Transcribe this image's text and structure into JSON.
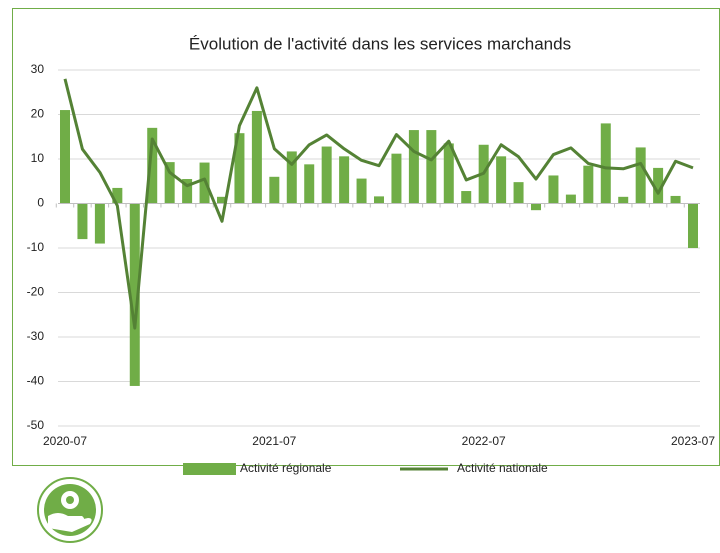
{
  "chart_data": {
    "type": "bar-line",
    "title": "Évolution de l'activité dans les services marchands",
    "categories": [
      "2020-07",
      null,
      null,
      null,
      null,
      null,
      null,
      null,
      null,
      null,
      null,
      null,
      "2021-07",
      null,
      null,
      null,
      null,
      null,
      null,
      null,
      null,
      null,
      null,
      null,
      "2022-07",
      null,
      null,
      null,
      null,
      null,
      null,
      null,
      null,
      null,
      null,
      null,
      "2023-07"
    ],
    "series": [
      {
        "name": "Activité régionale",
        "type": "bar",
        "color": "#70ad47",
        "values": [
          21,
          -8,
          -9,
          3.5,
          -41,
          17,
          9.3,
          5.5,
          9.2,
          1.5,
          15.8,
          20.8,
          6,
          11.7,
          8.8,
          12.8,
          10.6,
          5.6,
          1.6,
          11.2,
          16.5,
          16.5,
          13.5,
          2.8,
          13.2,
          10.6,
          4.8,
          -1.5,
          6.3,
          2,
          8.5,
          18,
          1.5,
          12.6,
          8,
          1.7,
          -10
        ]
      },
      {
        "name": "Activité nationale",
        "type": "line",
        "color": "#548235",
        "values": [
          28,
          12.2,
          7,
          -0.5,
          -28,
          14.5,
          7,
          4,
          5.5,
          -4,
          17.5,
          26,
          12.3,
          8.8,
          13.2,
          15.4,
          12.3,
          9.7,
          8.5,
          15.5,
          11.7,
          9.8,
          14,
          5.3,
          6.8,
          13.2,
          10.5,
          5.5,
          11,
          12.5,
          9,
          8,
          7.8,
          9,
          2.3,
          9.5,
          8
        ]
      }
    ],
    "ylim": [
      -50,
      30
    ],
    "yticks": [
      -50,
      -40,
      -30,
      -20,
      -10,
      0,
      10,
      20,
      30
    ],
    "grid": true
  }
}
